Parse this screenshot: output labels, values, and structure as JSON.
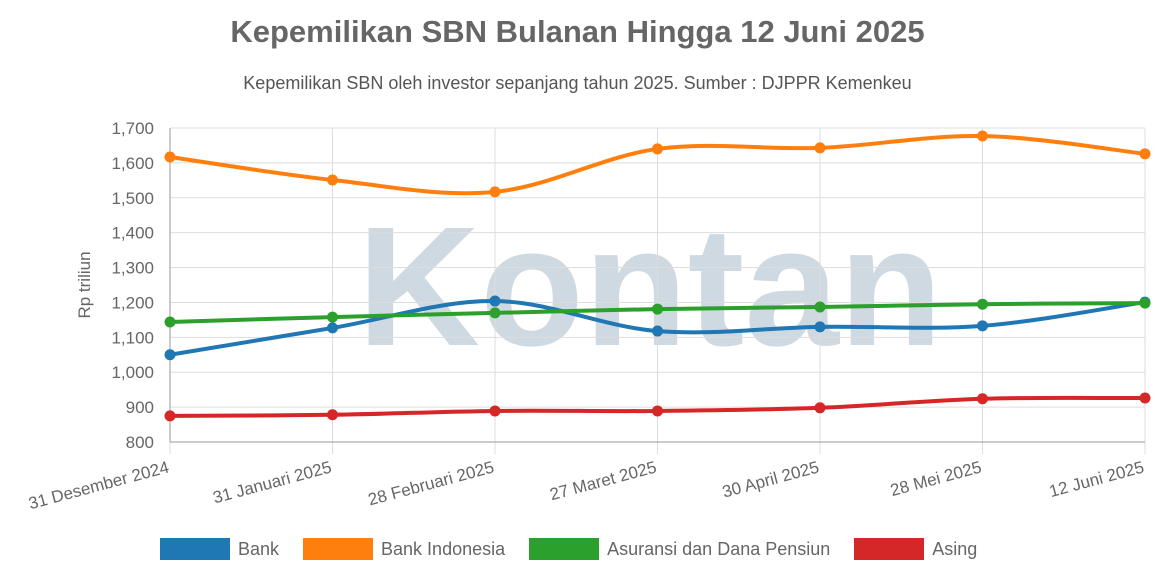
{
  "chart_data": {
    "type": "line",
    "title": "Kepemilikan SBN Bulanan Hingga 12 Juni 2025",
    "subtitle": "Kepemilikan SBN oleh investor sepanjang tahun 2025. Sumber : DJPPR Kemenkeu",
    "xlabel": "",
    "ylabel": "Rp triliun",
    "ylim": [
      800,
      1700
    ],
    "yticks": [
      "800",
      "900",
      "1,000",
      "1,100",
      "1,200",
      "1,300",
      "1,400",
      "1,500",
      "1,600",
      "1,700"
    ],
    "grid": true,
    "legend_position": "bottom",
    "watermark": "Kontan",
    "categories": [
      "31 Desember 2024",
      "31 Januari 2025",
      "28 Februari 2025",
      "27 Maret 2025",
      "30 April 2025",
      "28 Mei 2025",
      "12 Juni 2025"
    ],
    "series": [
      {
        "name": "Bank",
        "color": "#1f77b4",
        "values": [
          1050,
          1127,
          1204,
          1118,
          1130,
          1133,
          1201
        ]
      },
      {
        "name": "Bank Indonesia",
        "color": "#ff7f0e",
        "values": [
          1617,
          1551,
          1517,
          1640,
          1643,
          1677,
          1626
        ]
      },
      {
        "name": "Asuransi dan Dana Pensiun",
        "color": "#2ca02c",
        "values": [
          1144,
          1158,
          1170,
          1181,
          1187,
          1195,
          1198
        ]
      },
      {
        "name": "Asing",
        "color": "#d62728",
        "values": [
          875,
          878,
          889,
          889,
          898,
          924,
          926
        ]
      }
    ]
  }
}
